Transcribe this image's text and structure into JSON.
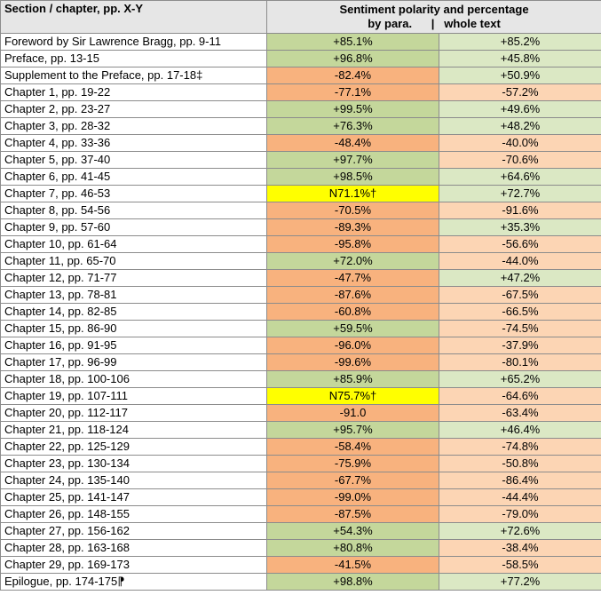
{
  "header": {
    "section": "Section / chapter, pp. X-Y",
    "sentiment": "Sentiment polarity and percentage",
    "sub": "by para.      |   whole text"
  },
  "rows": [
    {
      "label": "Foreword by Sir Lawrence Bragg, pp. 9-11",
      "para": "+85.1%",
      "para_tone": "pos",
      "whole": "+85.2%",
      "whole_tone": "pos-light"
    },
    {
      "label": "Preface, pp. 13-15",
      "para": "+96.8%",
      "para_tone": "pos",
      "whole": "+45.8%",
      "whole_tone": "pos-light"
    },
    {
      "label": "Supplement to the Preface, pp. 17-18‡",
      "para": "-82.4%",
      "para_tone": "neg",
      "whole": "+50.9%",
      "whole_tone": "pos-light"
    },
    {
      "label": "Chapter 1, pp. 19-22",
      "para": "-77.1%",
      "para_tone": "neg",
      "whole": "-57.2%",
      "whole_tone": "neg-light"
    },
    {
      "label": "Chapter 2, pp. 23-27",
      "para": "+99.5%",
      "para_tone": "pos",
      "whole": "+49.6%",
      "whole_tone": "pos-light"
    },
    {
      "label": "Chapter 3, pp. 28-32",
      "para": "+76.3%",
      "para_tone": "pos",
      "whole": "+48.2%",
      "whole_tone": "pos-light"
    },
    {
      "label": "Chapter 4, pp. 33-36",
      "para": "-48.4%",
      "para_tone": "neg",
      "whole": "-40.0%",
      "whole_tone": "neg-light"
    },
    {
      "label": "Chapter 5, pp. 37-40",
      "para": "+97.7%",
      "para_tone": "pos",
      "whole": "-70.6%",
      "whole_tone": "neg-light"
    },
    {
      "label": "Chapter 6, pp. 41-45",
      "para": "+98.5%",
      "para_tone": "pos",
      "whole": "+64.6%",
      "whole_tone": "pos-light"
    },
    {
      "label": "Chapter 7, pp. 46-53",
      "para": "N71.1%†",
      "para_tone": "neu",
      "whole": "+72.7%",
      "whole_tone": "pos-light"
    },
    {
      "label": "Chapter 8, pp. 54-56",
      "para": "-70.5%",
      "para_tone": "neg",
      "whole": "-91.6%",
      "whole_tone": "neg-light"
    },
    {
      "label": "Chapter 9, pp. 57-60",
      "para": "-89.3%",
      "para_tone": "neg",
      "whole": "+35.3%",
      "whole_tone": "pos-light"
    },
    {
      "label": "Chapter 10, pp. 61-64",
      "para": "-95.8%",
      "para_tone": "neg",
      "whole": "-56.6%",
      "whole_tone": "neg-light"
    },
    {
      "label": "Chapter 11, pp. 65-70",
      "para": "+72.0%",
      "para_tone": "pos",
      "whole": "-44.0%",
      "whole_tone": "neg-light"
    },
    {
      "label": "Chapter 12, pp. 71-77",
      "para": "-47.7%",
      "para_tone": "neg",
      "whole": "+47.2%",
      "whole_tone": "pos-light"
    },
    {
      "label": "Chapter 13, pp. 78-81",
      "para": "-87.6%",
      "para_tone": "neg",
      "whole": "-67.5%",
      "whole_tone": "neg-light"
    },
    {
      "label": "Chapter 14, pp. 82-85",
      "para": "-60.8%",
      "para_tone": "neg",
      "whole": "-66.5%",
      "whole_tone": "neg-light"
    },
    {
      "label": "Chapter 15, pp. 86-90",
      "para": "+59.5%",
      "para_tone": "pos",
      "whole": "-74.5%",
      "whole_tone": "neg-light"
    },
    {
      "label": "Chapter 16, pp. 91-95",
      "para": "-96.0%",
      "para_tone": "neg",
      "whole": "-37.9%",
      "whole_tone": "neg-light"
    },
    {
      "label": "Chapter 17, pp. 96-99",
      "para": "-99.6%",
      "para_tone": "neg",
      "whole": "-80.1%",
      "whole_tone": "neg-light"
    },
    {
      "label": "Chapter 18, pp. 100-106",
      "para": "+85.9%",
      "para_tone": "pos",
      "whole": "+65.2%",
      "whole_tone": "pos-light"
    },
    {
      "label": "Chapter 19, pp. 107-111",
      "para": "N75.7%†",
      "para_tone": "neu",
      "whole": "-64.6%",
      "whole_tone": "neg-light"
    },
    {
      "label": "Chapter 20, pp. 112-117",
      "para": "-91.0",
      "para_tone": "neg",
      "whole": "-63.4%",
      "whole_tone": "neg-light"
    },
    {
      "label": "Chapter 21, pp. 118-124",
      "para": "+95.7%",
      "para_tone": "pos",
      "whole": "+46.4%",
      "whole_tone": "pos-light"
    },
    {
      "label": "Chapter 22, pp. 125-129",
      "para": "-58.4%",
      "para_tone": "neg",
      "whole": "-74.8%",
      "whole_tone": "neg-light"
    },
    {
      "label": "Chapter 23, pp. 130-134",
      "para": "-75.9%",
      "para_tone": "neg",
      "whole": "-50.8%",
      "whole_tone": "neg-light"
    },
    {
      "label": "Chapter 24, pp. 135-140",
      "para": "-67.7%",
      "para_tone": "neg",
      "whole": "-86.4%",
      "whole_tone": "neg-light"
    },
    {
      "label": "Chapter 25, pp. 141-147",
      "para": "-99.0%",
      "para_tone": "neg",
      "whole": "-44.4%",
      "whole_tone": "neg-light"
    },
    {
      "label": "Chapter 26, pp. 148-155",
      "para": "-87.5%",
      "para_tone": "neg",
      "whole": "-79.0%",
      "whole_tone": "neg-light"
    },
    {
      "label": "Chapter 27, pp. 156-162",
      "para": "+54.3%",
      "para_tone": "pos",
      "whole": "+72.6%",
      "whole_tone": "pos-light"
    },
    {
      "label": "Chapter 28, pp. 163-168",
      "para": "+80.8%",
      "para_tone": "pos",
      "whole": "-38.4%",
      "whole_tone": "neg-light"
    },
    {
      "label": "Chapter 29, pp. 169-173",
      "para": "-41.5%",
      "para_tone": "neg",
      "whole": "-58.5%",
      "whole_tone": "neg-light"
    },
    {
      "label": "Epilogue, pp. 174-175⁋",
      "para": "+98.8%",
      "para_tone": "pos",
      "whole": "+77.2%",
      "whole_tone": "pos-light"
    }
  ],
  "colors": {
    "positive_para": "#c4d79b",
    "negative_para": "#f8b27e",
    "positive_whole": "#dbe8c4",
    "negative_whole": "#fcd5b4",
    "neutral": "#ffff00",
    "header_bg": "#e6e6e6"
  }
}
